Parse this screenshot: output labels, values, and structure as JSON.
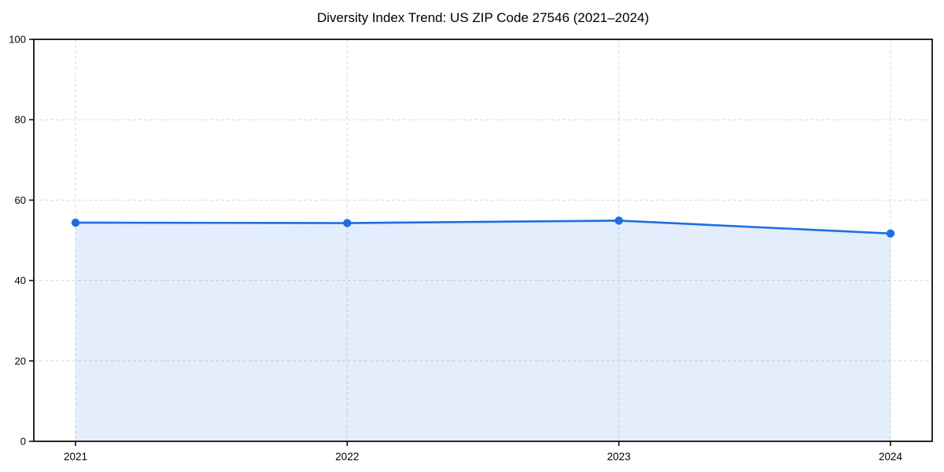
{
  "page": {
    "background": "#ffffff"
  },
  "chart_data": {
    "type": "line",
    "title": "Diversity Index Trend: US ZIP Code 27546 (2021–2024)",
    "x": [
      2021,
      2022,
      2023,
      2024
    ],
    "series": [
      {
        "name": "Diversity Index",
        "values": [
          54.4,
          54.3,
          54.9,
          51.7
        ]
      }
    ],
    "xlabel": "",
    "ylabel": "",
    "ylim": [
      0,
      100
    ],
    "yticks": [
      0,
      20,
      40,
      60,
      80,
      100
    ],
    "grid": true,
    "grid_style": "dashed",
    "legend": false,
    "area_fill": true,
    "markers": true,
    "colors": {
      "line": "#1c6fe2",
      "marker": "#1c6fe2",
      "fill": "#1c6fe2",
      "fill_opacity": 0.12,
      "grid": "#d9d9d9",
      "spine": "#111111",
      "text": "#000000"
    }
  }
}
